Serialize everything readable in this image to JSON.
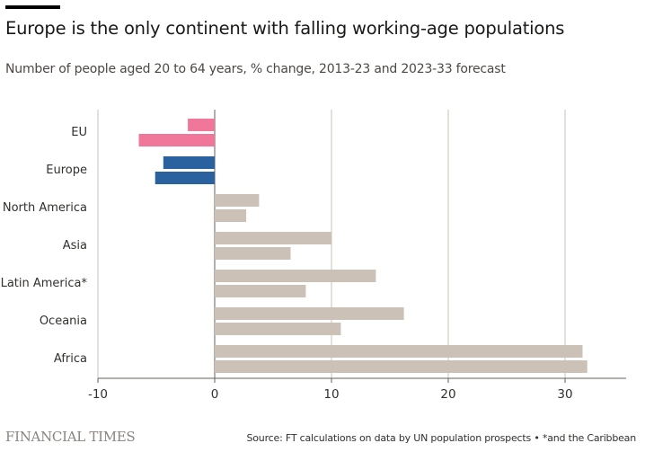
{
  "title": "Europe is the only continent with falling working-age populations",
  "subtitle": "Number of people aged 20 to 64 years, % change, 2013-23 and 2023-33 forecast",
  "footer": {
    "logo": "FINANCIAL TIMES",
    "source": "Source: FT calculations on data by UN population prospects • *and the Caribbean"
  },
  "colors": {
    "eu": "#f0779a",
    "europe": "#2a62a0",
    "other": "#ccc1b7",
    "grid": "#ccc1b7",
    "axis": "#66605c"
  },
  "chart_data": {
    "type": "bar",
    "orientation": "horizontal",
    "title": "Europe is the only continent with falling working-age populations",
    "subtitle": "Number of people aged 20 to 64 years, % change, 2013-23 and 2023-33 forecast",
    "xlabel": "",
    "ylabel": "",
    "xlim": [
      -10,
      35
    ],
    "xticks": [
      -10,
      0,
      10,
      20,
      30
    ],
    "grid": true,
    "categories": [
      "EU",
      "Europe",
      "North America",
      "Asia",
      "Latin America*",
      "Oceania",
      "Africa"
    ],
    "series": [
      {
        "name": "2013-23",
        "values": [
          -2.3,
          -4.4,
          3.8,
          10.0,
          13.8,
          16.2,
          31.5
        ]
      },
      {
        "name": "2023-33 forecast",
        "values": [
          -6.5,
          -5.1,
          2.7,
          6.5,
          7.8,
          10.8,
          31.9
        ]
      }
    ]
  }
}
